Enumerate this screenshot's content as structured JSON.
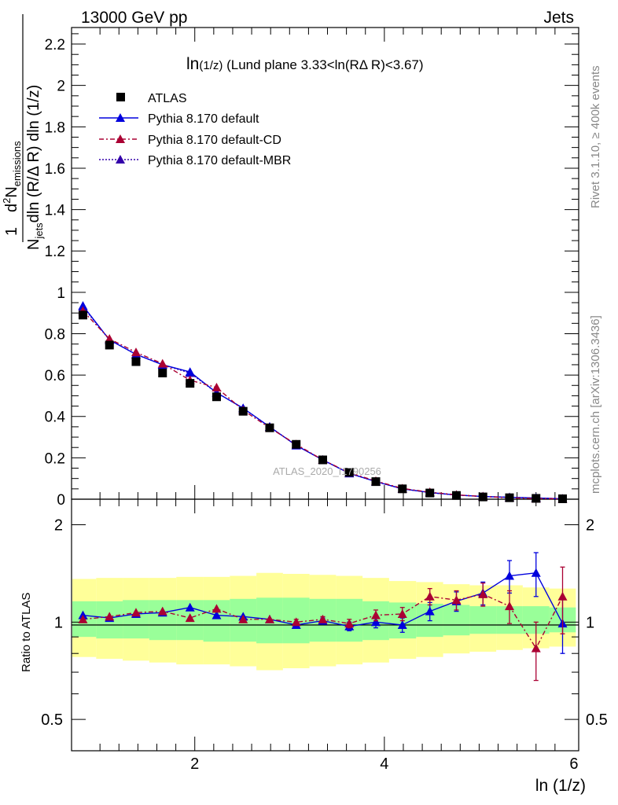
{
  "header": {
    "left": "13000 GeV pp",
    "right": "Jets"
  },
  "side_labels": {
    "rivet": "Rivet 3.1.10, ≥ 400k events",
    "mcplots": "mcplots.cern.ch [arXiv:1306.3436]"
  },
  "watermark": "ATLAS_2020_I1790256",
  "title": {
    "main": "ln",
    "sub": "(1/z)",
    "rest": " (Lund plane 3.33<ln(RΔ R)<3.67)"
  },
  "ylabel": {
    "one": "1",
    "d2": "d",
    "two": "2",
    "N": "N",
    "emissions": "emissions",
    "Nj": "N",
    "jets": "jets",
    "denom": "dln (R/Δ R) dln (1/z)"
  },
  "ratio_ylabel": "Ratio to ATLAS",
  "xlabel": "ln (1/z)",
  "legend": [
    "ATLAS",
    "Pythia 8.170 default",
    "Pythia 8.170 default-CD",
    "Pythia 8.170 default-MBR"
  ],
  "colors": {
    "data": "#000000",
    "default": "#0000dd",
    "cd": "#aa0033",
    "mbr": "#3300aa",
    "band_inner": "#99ff99",
    "band_outer": "#ffff99"
  },
  "chart_data": {
    "type": "line",
    "x": [
      0.82,
      1.1,
      1.38,
      1.66,
      1.95,
      2.23,
      2.51,
      2.79,
      3.07,
      3.35,
      3.63,
      3.91,
      4.19,
      4.48,
      4.76,
      5.04,
      5.32,
      5.6,
      5.88
    ],
    "xlim": [
      0.7,
      6.05
    ],
    "ylim_main": [
      0,
      2.28
    ],
    "ylim_ratio": [
      0.4,
      2.4
    ],
    "main_yticks": [
      "0",
      "0.2",
      "0.4",
      "0.6",
      "0.8",
      "1",
      "1.2",
      "1.4",
      "1.6",
      "1.8",
      "2",
      "2.2"
    ],
    "ratio_yticks": [
      "0.5",
      "1",
      "2"
    ],
    "xticks": [
      "2",
      "4",
      "6"
    ],
    "series": [
      {
        "name": "ATLAS",
        "values": [
          0.89,
          0.745,
          0.665,
          0.61,
          0.56,
          0.495,
          0.425,
          0.345,
          0.265,
          0.19,
          0.13,
          0.085,
          0.05,
          0.03,
          0.018,
          0.011,
          0.007,
          0.004,
          0.002
        ]
      },
      {
        "name": "Pythia 8.170 default",
        "values": [
          0.935,
          0.77,
          0.7,
          0.65,
          0.615,
          0.515,
          0.44,
          0.35,
          0.26,
          0.19,
          0.125,
          0.085,
          0.05,
          0.032,
          0.02,
          0.013,
          0.009,
          0.006,
          0.002
        ]
      },
      {
        "name": "Pythia 8.170 default-CD",
        "values": [
          0.91,
          0.775,
          0.71,
          0.655,
          0.575,
          0.54,
          0.43,
          0.345,
          0.265,
          0.19,
          0.128,
          0.088,
          0.052,
          0.034,
          0.021,
          0.013,
          0.007,
          0.003,
          0.002
        ]
      },
      {
        "name": "Pythia 8.170 default-MBR",
        "values": [
          0.93,
          0.77,
          0.7,
          0.65,
          0.61,
          0.515,
          0.44,
          0.35,
          0.26,
          0.19,
          0.125,
          0.085,
          0.05,
          0.032,
          0.02,
          0.013,
          0.009,
          0.006,
          0.002
        ]
      }
    ],
    "ratio": {
      "default": [
        1.05,
        1.03,
        1.06,
        1.07,
        1.11,
        1.05,
        1.04,
        1.02,
        0.98,
        1.01,
        0.97,
        1.0,
        0.98,
        1.08,
        1.16,
        1.23,
        1.39,
        1.42,
        0.99
      ],
      "default_err": [
        0.01,
        0.01,
        0.01,
        0.01,
        0.01,
        0.01,
        0.01,
        0.01,
        0.02,
        0.02,
        0.03,
        0.04,
        0.05,
        0.07,
        0.08,
        0.1,
        0.16,
        0.22,
        0.19
      ],
      "cd": [
        1.02,
        1.04,
        1.07,
        1.08,
        1.03,
        1.1,
        1.02,
        1.02,
        1.0,
        1.02,
        0.99,
        1.05,
        1.06,
        1.2,
        1.17,
        1.22,
        1.12,
        0.83,
        1.2
      ],
      "cd_err": [
        0.01,
        0.01,
        0.01,
        0.01,
        0.01,
        0.01,
        0.01,
        0.01,
        0.02,
        0.02,
        0.03,
        0.04,
        0.05,
        0.07,
        0.08,
        0.1,
        0.13,
        0.17,
        0.28
      ],
      "band_inner": [
        [
          0.9,
          1.16
        ],
        [
          0.89,
          1.16
        ],
        [
          0.89,
          1.17
        ],
        [
          0.88,
          1.17
        ],
        [
          0.88,
          1.17
        ],
        [
          0.87,
          1.17
        ],
        [
          0.87,
          1.18
        ],
        [
          0.86,
          1.19
        ],
        [
          0.86,
          1.19
        ],
        [
          0.87,
          1.18
        ],
        [
          0.87,
          1.18
        ],
        [
          0.88,
          1.16
        ],
        [
          0.89,
          1.15
        ],
        [
          0.9,
          1.14
        ],
        [
          0.91,
          1.13
        ],
        [
          0.92,
          1.12
        ],
        [
          0.92,
          1.12
        ],
        [
          0.92,
          1.12
        ],
        [
          0.93,
          1.11
        ]
      ],
      "band_outer": [
        [
          0.78,
          1.36
        ],
        [
          0.77,
          1.37
        ],
        [
          0.76,
          1.37
        ],
        [
          0.75,
          1.37
        ],
        [
          0.74,
          1.38
        ],
        [
          0.74,
          1.38
        ],
        [
          0.73,
          1.39
        ],
        [
          0.71,
          1.42
        ],
        [
          0.72,
          1.41
        ],
        [
          0.73,
          1.4
        ],
        [
          0.74,
          1.39
        ],
        [
          0.75,
          1.37
        ],
        [
          0.77,
          1.34
        ],
        [
          0.78,
          1.33
        ],
        [
          0.8,
          1.31
        ],
        [
          0.81,
          1.3
        ],
        [
          0.82,
          1.3
        ],
        [
          0.83,
          1.28
        ],
        [
          0.84,
          1.27
        ]
      ]
    }
  }
}
